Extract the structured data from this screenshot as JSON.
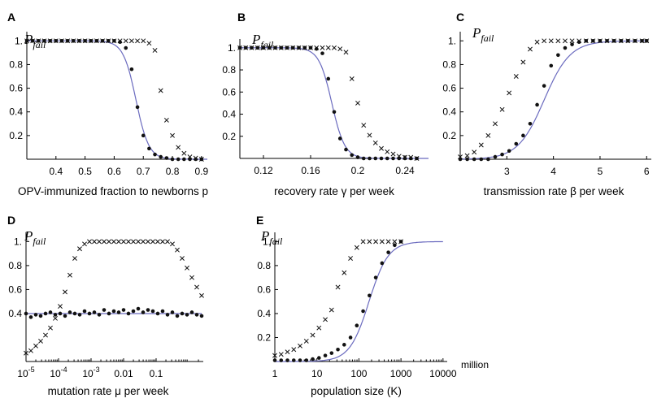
{
  "chart_data": [
    {
      "id": "A",
      "panel_label": "A",
      "type": "scatter",
      "ylabel": "P",
      "ylabel_sub": "fail",
      "xlabel": "OPV-immunized fraction to newborns p",
      "xscale": "linear",
      "xlim": [
        0.3,
        0.92
      ],
      "ylim": [
        0,
        1.05
      ],
      "xticks": [
        0.4,
        0.5,
        0.6,
        0.7,
        0.8,
        0.9
      ],
      "xtick_labels": [
        "0.4",
        "0.5",
        "0.6",
        "0.7",
        "0.8",
        "0.9"
      ],
      "yticks": [
        0.2,
        0.4,
        0.6,
        0.8,
        1.0
      ],
      "ytick_labels": [
        "0.2",
        "0.4",
        "0.6",
        "0.8",
        "1."
      ],
      "curve": {
        "type": "logistic",
        "mid": 0.675,
        "scale": 0.022,
        "lo": 0,
        "hi": 1,
        "x0": 0.3,
        "x1": 0.92
      },
      "series": [
        {
          "name": "dots",
          "marker": "dot",
          "x": [
            0.3,
            0.32,
            0.34,
            0.36,
            0.38,
            0.4,
            0.42,
            0.44,
            0.46,
            0.48,
            0.5,
            0.52,
            0.54,
            0.56,
            0.58,
            0.6,
            0.62,
            0.64,
            0.66,
            0.68,
            0.7,
            0.72,
            0.74,
            0.76,
            0.78,
            0.8,
            0.82,
            0.84,
            0.86,
            0.88,
            0.9
          ],
          "y": [
            1,
            1,
            1,
            1,
            1,
            1,
            1,
            1,
            1,
            1,
            1,
            1,
            1,
            1,
            1,
            1,
            0.99,
            0.94,
            0.76,
            0.44,
            0.2,
            0.09,
            0.04,
            0.02,
            0.01,
            0,
            0,
            0,
            0,
            0,
            0
          ]
        },
        {
          "name": "crosses",
          "marker": "cross",
          "x": [
            0.3,
            0.32,
            0.34,
            0.36,
            0.38,
            0.4,
            0.42,
            0.44,
            0.46,
            0.48,
            0.5,
            0.52,
            0.54,
            0.56,
            0.58,
            0.6,
            0.62,
            0.64,
            0.66,
            0.68,
            0.7,
            0.72,
            0.74,
            0.76,
            0.78,
            0.8,
            0.82,
            0.84,
            0.86,
            0.88,
            0.9
          ],
          "y": [
            1,
            1,
            1,
            1,
            1,
            1,
            1,
            1,
            1,
            1,
            1,
            1,
            1,
            1,
            1,
            1,
            1,
            1,
            1,
            1,
            1,
            0.98,
            0.92,
            0.58,
            0.33,
            0.2,
            0.1,
            0.05,
            0.02,
            0.01,
            0
          ]
        }
      ]
    },
    {
      "id": "B",
      "panel_label": "B",
      "type": "scatter",
      "ylabel": "P",
      "ylabel_sub": "fail",
      "xlabel": "recovery rate γ per week",
      "xscale": "linear",
      "xlim": [
        0.1,
        0.26
      ],
      "ylim": [
        0,
        1.05
      ],
      "xticks": [
        0.12,
        0.16,
        0.2,
        0.24
      ],
      "xtick_labels": [
        "0.12",
        "0.16",
        "0.2",
        "0.24"
      ],
      "yticks": [
        0.2,
        0.4,
        0.6,
        0.8,
        1.0
      ],
      "ytick_labels": [
        "0.2",
        "0.4",
        "0.6",
        "0.8",
        "1."
      ],
      "curve": {
        "type": "logistic",
        "mid": 0.178,
        "scale": 0.0055,
        "lo": 0,
        "hi": 1,
        "x0": 0.1,
        "x1": 0.26
      },
      "series": [
        {
          "name": "dots",
          "marker": "dot",
          "x": [
            0.1,
            0.105,
            0.11,
            0.115,
            0.12,
            0.125,
            0.13,
            0.135,
            0.14,
            0.145,
            0.15,
            0.155,
            0.16,
            0.165,
            0.17,
            0.175,
            0.18,
            0.185,
            0.19,
            0.195,
            0.2,
            0.205,
            0.21,
            0.215,
            0.22,
            0.225,
            0.23,
            0.235,
            0.24,
            0.245,
            0.25
          ],
          "y": [
            1,
            1,
            1,
            1,
            1,
            1,
            1,
            1,
            1,
            1,
            1,
            1,
            1,
            0.99,
            0.95,
            0.72,
            0.42,
            0.18,
            0.08,
            0.03,
            0.01,
            0,
            0,
            0,
            0,
            0,
            0,
            0,
            0,
            0,
            0
          ]
        },
        {
          "name": "crosses",
          "marker": "cross",
          "x": [
            0.1,
            0.105,
            0.11,
            0.115,
            0.12,
            0.125,
            0.13,
            0.135,
            0.14,
            0.145,
            0.15,
            0.155,
            0.16,
            0.165,
            0.17,
            0.175,
            0.18,
            0.185,
            0.19,
            0.195,
            0.2,
            0.205,
            0.21,
            0.215,
            0.22,
            0.225,
            0.23,
            0.235,
            0.24,
            0.245,
            0.25
          ],
          "y": [
            1,
            1,
            1,
            1,
            1,
            1,
            1,
            1,
            1,
            1,
            1,
            1,
            1,
            1,
            1,
            1,
            1,
            0.99,
            0.96,
            0.72,
            0.5,
            0.3,
            0.21,
            0.14,
            0.09,
            0.06,
            0.04,
            0.02,
            0.01,
            0.01,
            0
          ]
        }
      ]
    },
    {
      "id": "C",
      "panel_label": "C",
      "type": "scatter",
      "ylabel": "P",
      "ylabel_sub": "fail",
      "xlabel": "transmission rate β per week",
      "xscale": "linear",
      "xlim": [
        2,
        6.1
      ],
      "ylim": [
        0,
        1.05
      ],
      "xticks": [
        3,
        4,
        5,
        6
      ],
      "xtick_labels": [
        "3",
        "4",
        "5",
        "6"
      ],
      "yticks": [
        0.2,
        0.4,
        0.6,
        0.8,
        1.0
      ],
      "ytick_labels": [
        "0.2",
        "0.4",
        "0.6",
        "0.8",
        "1."
      ],
      "curve": {
        "type": "logistic",
        "mid": 3.8,
        "scale": 0.28,
        "lo": 0,
        "hi": 1,
        "x0": 2,
        "x1": 6
      },
      "series": [
        {
          "name": "dots",
          "marker": "dot",
          "x": [
            2.0,
            2.15,
            2.3,
            2.45,
            2.6,
            2.75,
            2.9,
            3.05,
            3.2,
            3.35,
            3.5,
            3.65,
            3.8,
            3.95,
            4.1,
            4.25,
            4.4,
            4.55,
            4.7,
            4.85,
            5.0,
            5.15,
            5.3,
            5.45,
            5.6,
            5.75,
            5.9,
            6.0
          ],
          "y": [
            0,
            0,
            0,
            0,
            0,
            0.02,
            0.04,
            0.07,
            0.13,
            0.2,
            0.3,
            0.46,
            0.62,
            0.79,
            0.88,
            0.94,
            0.97,
            0.99,
            1,
            1,
            1,
            1,
            1,
            1,
            1,
            1,
            1,
            1
          ]
        },
        {
          "name": "crosses",
          "marker": "cross",
          "x": [
            2.0,
            2.15,
            2.3,
            2.45,
            2.6,
            2.75,
            2.9,
            3.05,
            3.2,
            3.35,
            3.5,
            3.65,
            3.8,
            3.95,
            4.1,
            4.25,
            4.4,
            4.55,
            4.7,
            4.85,
            5.0,
            5.15,
            5.3,
            5.45,
            5.6,
            5.75,
            5.9,
            6.0
          ],
          "y": [
            0.02,
            0.03,
            0.06,
            0.12,
            0.2,
            0.3,
            0.42,
            0.56,
            0.7,
            0.82,
            0.93,
            0.99,
            1,
            1,
            1,
            1,
            1,
            1,
            1,
            1,
            1,
            1,
            1,
            1,
            1,
            1,
            1,
            1
          ]
        }
      ]
    },
    {
      "id": "D",
      "panel_label": "D",
      "type": "scatter",
      "ylabel": "P",
      "ylabel_sub": "fail",
      "xlabel": "mutation rate μ per week",
      "xscale": "log",
      "xlim": [
        -5,
        0.45
      ],
      "ylim": [
        0,
        1.05
      ],
      "xticks": [
        -5,
        -4,
        -3,
        -2,
        -1
      ],
      "xtick_labels": [
        "10",
        "10",
        "10",
        "0.01",
        "0.1"
      ],
      "xtick_exps": [
        "-5",
        "-4",
        "-3",
        "",
        ""
      ],
      "yticks": [
        0.4,
        0.6,
        0.8,
        1.0
      ],
      "ytick_labels": [
        "0.4",
        "0.6",
        "0.8",
        "1."
      ],
      "curve": {
        "type": "flat",
        "value": 0.4,
        "x0": -5,
        "x1": 0.4
      },
      "series": [
        {
          "name": "dots",
          "marker": "dot",
          "x": [
            -5.0,
            -4.85,
            -4.7,
            -4.55,
            -4.4,
            -4.25,
            -4.1,
            -3.95,
            -3.8,
            -3.65,
            -3.5,
            -3.35,
            -3.2,
            -3.05,
            -2.9,
            -2.75,
            -2.6,
            -2.45,
            -2.3,
            -2.15,
            -2.0,
            -1.85,
            -1.7,
            -1.55,
            -1.4,
            -1.25,
            -1.1,
            -0.95,
            -0.8,
            -0.65,
            -0.5,
            -0.35,
            -0.2,
            -0.05,
            0.1,
            0.25,
            0.4
          ],
          "y": [
            0.4,
            0.37,
            0.39,
            0.38,
            0.4,
            0.41,
            0.39,
            0.4,
            0.38,
            0.41,
            0.4,
            0.39,
            0.42,
            0.4,
            0.41,
            0.39,
            0.43,
            0.4,
            0.42,
            0.41,
            0.43,
            0.4,
            0.42,
            0.44,
            0.41,
            0.43,
            0.42,
            0.4,
            0.42,
            0.39,
            0.41,
            0.38,
            0.4,
            0.39,
            0.41,
            0.39,
            0.38
          ]
        },
        {
          "name": "crosses",
          "marker": "cross",
          "x": [
            -5.0,
            -4.85,
            -4.7,
            -4.55,
            -4.4,
            -4.25,
            -4.1,
            -3.95,
            -3.8,
            -3.65,
            -3.5,
            -3.35,
            -3.2,
            -3.05,
            -2.9,
            -2.75,
            -2.6,
            -2.45,
            -2.3,
            -2.15,
            -2.0,
            -1.85,
            -1.7,
            -1.55,
            -1.4,
            -1.25,
            -1.1,
            -0.95,
            -0.8,
            -0.65,
            -0.5,
            -0.35,
            -0.2,
            -0.05,
            0.1,
            0.25,
            0.4
          ],
          "y": [
            0.07,
            0.09,
            0.13,
            0.17,
            0.22,
            0.28,
            0.36,
            0.46,
            0.58,
            0.72,
            0.86,
            0.94,
            0.98,
            1,
            1,
            1,
            1,
            1,
            1,
            1,
            1,
            1,
            1,
            1,
            1,
            1,
            1,
            1,
            1,
            1,
            0.98,
            0.93,
            0.86,
            0.78,
            0.7,
            0.62,
            0.55
          ]
        }
      ]
    },
    {
      "id": "E",
      "panel_label": "E",
      "type": "scatter",
      "ylabel": "P",
      "ylabel_sub": "fail",
      "xlabel": "population size (K)",
      "xunit_label": "million",
      "xscale": "log",
      "xlim": [
        0,
        4.1
      ],
      "ylim": [
        0,
        1.05
      ],
      "xticks": [
        0,
        1,
        2,
        3,
        4
      ],
      "xtick_labels": [
        "1",
        "10",
        "100",
        "1000",
        "10000"
      ],
      "yticks": [
        0.2,
        0.4,
        0.6,
        0.8,
        1.0
      ],
      "ytick_labels": [
        "0.2",
        "0.4",
        "0.6",
        "0.8",
        "1."
      ],
      "curve": {
        "type": "logistic",
        "mid": 2.24,
        "scale": 0.23,
        "lo": 0,
        "hi": 1,
        "x0": 0,
        "x1": 4
      },
      "series": [
        {
          "name": "dots",
          "marker": "dot",
          "x": [
            0,
            0.15,
            0.3,
            0.45,
            0.6,
            0.75,
            0.9,
            1.05,
            1.2,
            1.35,
            1.5,
            1.65,
            1.8,
            1.95,
            2.1,
            2.25,
            2.4,
            2.55,
            2.7,
            2.85,
            3.0
          ],
          "y": [
            0.01,
            0.01,
            0.01,
            0.01,
            0.01,
            0.01,
            0.02,
            0.03,
            0.05,
            0.07,
            0.1,
            0.14,
            0.2,
            0.3,
            0.42,
            0.55,
            0.7,
            0.82,
            0.91,
            0.97,
            1
          ]
        },
        {
          "name": "crosses",
          "marker": "cross",
          "x": [
            0,
            0.15,
            0.3,
            0.45,
            0.6,
            0.75,
            0.9,
            1.05,
            1.2,
            1.35,
            1.5,
            1.65,
            1.8,
            1.95,
            2.1,
            2.25,
            2.4,
            2.55,
            2.7,
            2.85,
            3.0
          ],
          "y": [
            0.05,
            0.06,
            0.08,
            0.1,
            0.13,
            0.17,
            0.22,
            0.28,
            0.35,
            0.43,
            0.62,
            0.74,
            0.86,
            0.95,
            1,
            1,
            1,
            1,
            1,
            1,
            1
          ]
        }
      ]
    }
  ]
}
